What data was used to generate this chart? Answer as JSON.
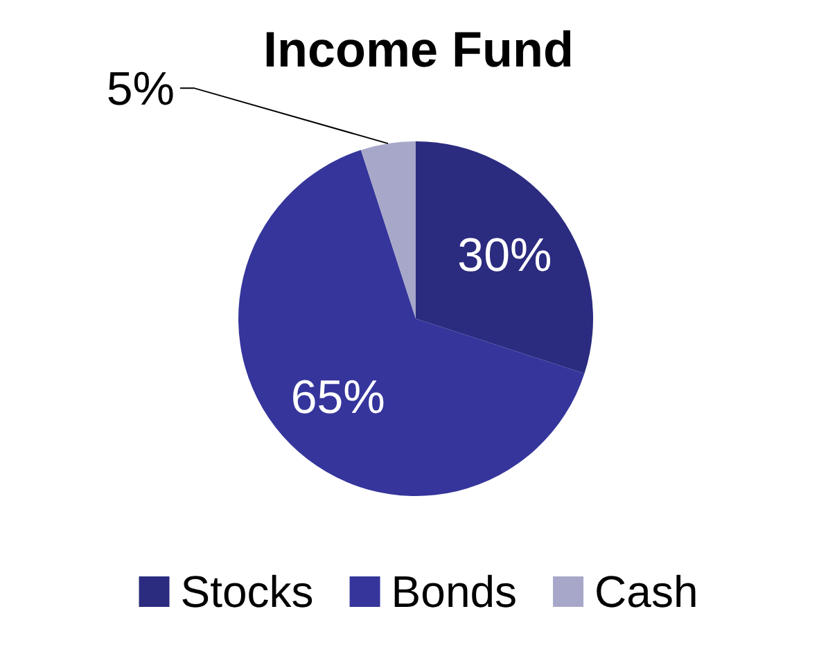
{
  "chart_data": {
    "type": "pie",
    "title": "Income Fund",
    "categories": [
      "Stocks",
      "Bonds",
      "Cash"
    ],
    "values": [
      30,
      65,
      5
    ],
    "colors": [
      "#2b2b80",
      "#35359c",
      "#a7a7c9"
    ],
    "value_labels": [
      "30%",
      "65%",
      "5%"
    ],
    "legend": "bottom"
  }
}
